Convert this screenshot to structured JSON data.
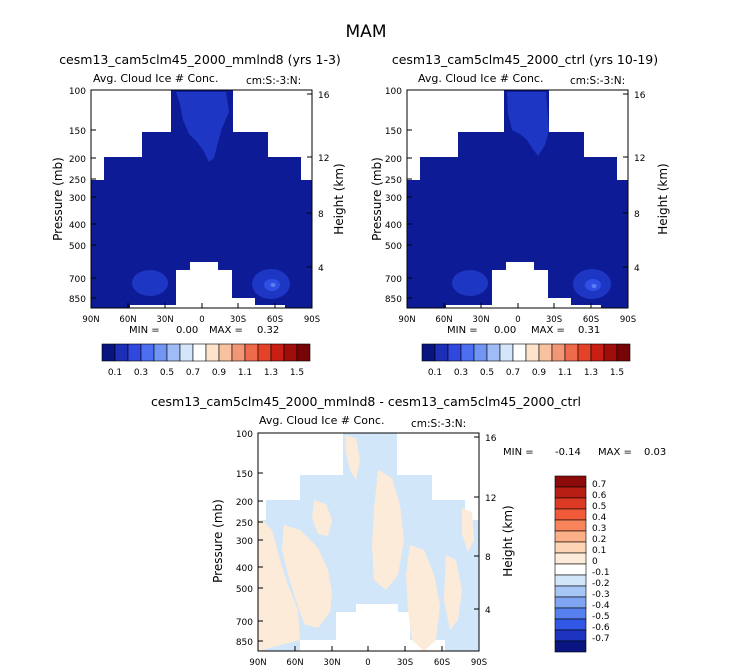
{
  "figure": {
    "season": "MAM"
  },
  "chart_data": [
    {
      "type": "heatmap",
      "title": "cesm13_cam5clm45_2000_mmlnd8 (yrs 1-3)",
      "subtitle_left": "Avg. Cloud Ice # Conc.",
      "subtitle_right": "cm:S:-3:N:",
      "ylabel": "Pressure (mb)",
      "ylabel_right": "Height (km)",
      "x_ticks": [
        "90N",
        "60N",
        "30N",
        "0",
        "30S",
        "60S",
        "90S"
      ],
      "y_ticks": [
        "100",
        "150",
        "200",
        "250",
        "300",
        "400",
        "500",
        "700",
        "850"
      ],
      "y_ticks_right": [
        "16",
        "12",
        "8",
        "4"
      ],
      "min_label": "MIN =",
      "min_value": "0.00",
      "max_label": "MAX =",
      "max_value": "0.32",
      "colorbar": {
        "labels": [
          "0.1",
          "0.3",
          "0.5",
          "0.7",
          "0.9",
          "1.1",
          "1.3",
          "1.5"
        ],
        "colors": [
          "#0a1480",
          "#1c2fb5",
          "#3048e0",
          "#4c6ef0",
          "#7095f3",
          "#a0bcf6",
          "#d5e6fb",
          "#ffffff",
          "#fde3cc",
          "#f8c2a0",
          "#f39676",
          "#ee6a4c",
          "#e4432a",
          "#c81e14",
          "#a00e0a",
          "#780505"
        ]
      }
    },
    {
      "type": "heatmap",
      "title": "cesm13_cam5clm45_2000_ctrl (yrs 10-19)",
      "subtitle_left": "Avg. Cloud Ice # Conc.",
      "subtitle_right": "cm:S:-3:N:",
      "ylabel": "Pressure (mb)",
      "ylabel_right": "Height (km)",
      "x_ticks": [
        "90N",
        "60N",
        "30N",
        "0",
        "30S",
        "60S",
        "90S"
      ],
      "y_ticks": [
        "100",
        "150",
        "200",
        "250",
        "300",
        "400",
        "500",
        "700",
        "850"
      ],
      "y_ticks_right": [
        "16",
        "12",
        "8",
        "4"
      ],
      "min_label": "MIN =",
      "min_value": "0.00",
      "max_label": "MAX =",
      "max_value": "0.31",
      "colorbar": {
        "labels": [
          "0.1",
          "0.3",
          "0.5",
          "0.7",
          "0.9",
          "1.1",
          "1.3",
          "1.5"
        ],
        "colors": [
          "#0a1480",
          "#1c2fb5",
          "#3048e0",
          "#4c6ef0",
          "#7095f3",
          "#a0bcf6",
          "#d5e6fb",
          "#ffffff",
          "#fde3cc",
          "#f8c2a0",
          "#f39676",
          "#ee6a4c",
          "#e4432a",
          "#c81e14",
          "#a00e0a",
          "#780505"
        ]
      }
    },
    {
      "type": "heatmap",
      "title": "cesm13_cam5clm45_2000_mmlnd8 - cesm13_cam5clm45_2000_ctrl",
      "subtitle_left": "Avg. Cloud Ice # Conc.",
      "subtitle_right": "cm:S:-3:N:",
      "ylabel": "Pressure (mb)",
      "ylabel_right": "Height (km)",
      "x_ticks": [
        "90N",
        "60N",
        "30N",
        "0",
        "30S",
        "60S",
        "90S"
      ],
      "y_ticks": [
        "100",
        "150",
        "200",
        "250",
        "300",
        "400",
        "500",
        "700",
        "850"
      ],
      "y_ticks_right": [
        "16",
        "12",
        "8",
        "4"
      ],
      "min_label": "MIN =",
      "min_value": "-0.14",
      "max_label": "MAX =",
      "max_value": "0.03",
      "colorbar": {
        "labels": [
          "0.7",
          "0.6",
          "0.5",
          "0.4",
          "0.3",
          "0.2",
          "0.1",
          "0",
          "-0.1",
          "-0.2",
          "-0.3",
          "-0.4",
          "-0.5",
          "-0.6",
          "-0.7"
        ],
        "colors": [
          "#8c0a0a",
          "#b81e14",
          "#dc3a24",
          "#f05a38",
          "#f7845a",
          "#fbaf86",
          "#fdd4b4",
          "#fdebd9",
          "#ffffff",
          "#d2e6fa",
          "#a6c6f5",
          "#7ea4f2",
          "#5680ee",
          "#3058e4",
          "#1c34c0",
          "#0a1480"
        ]
      }
    }
  ]
}
